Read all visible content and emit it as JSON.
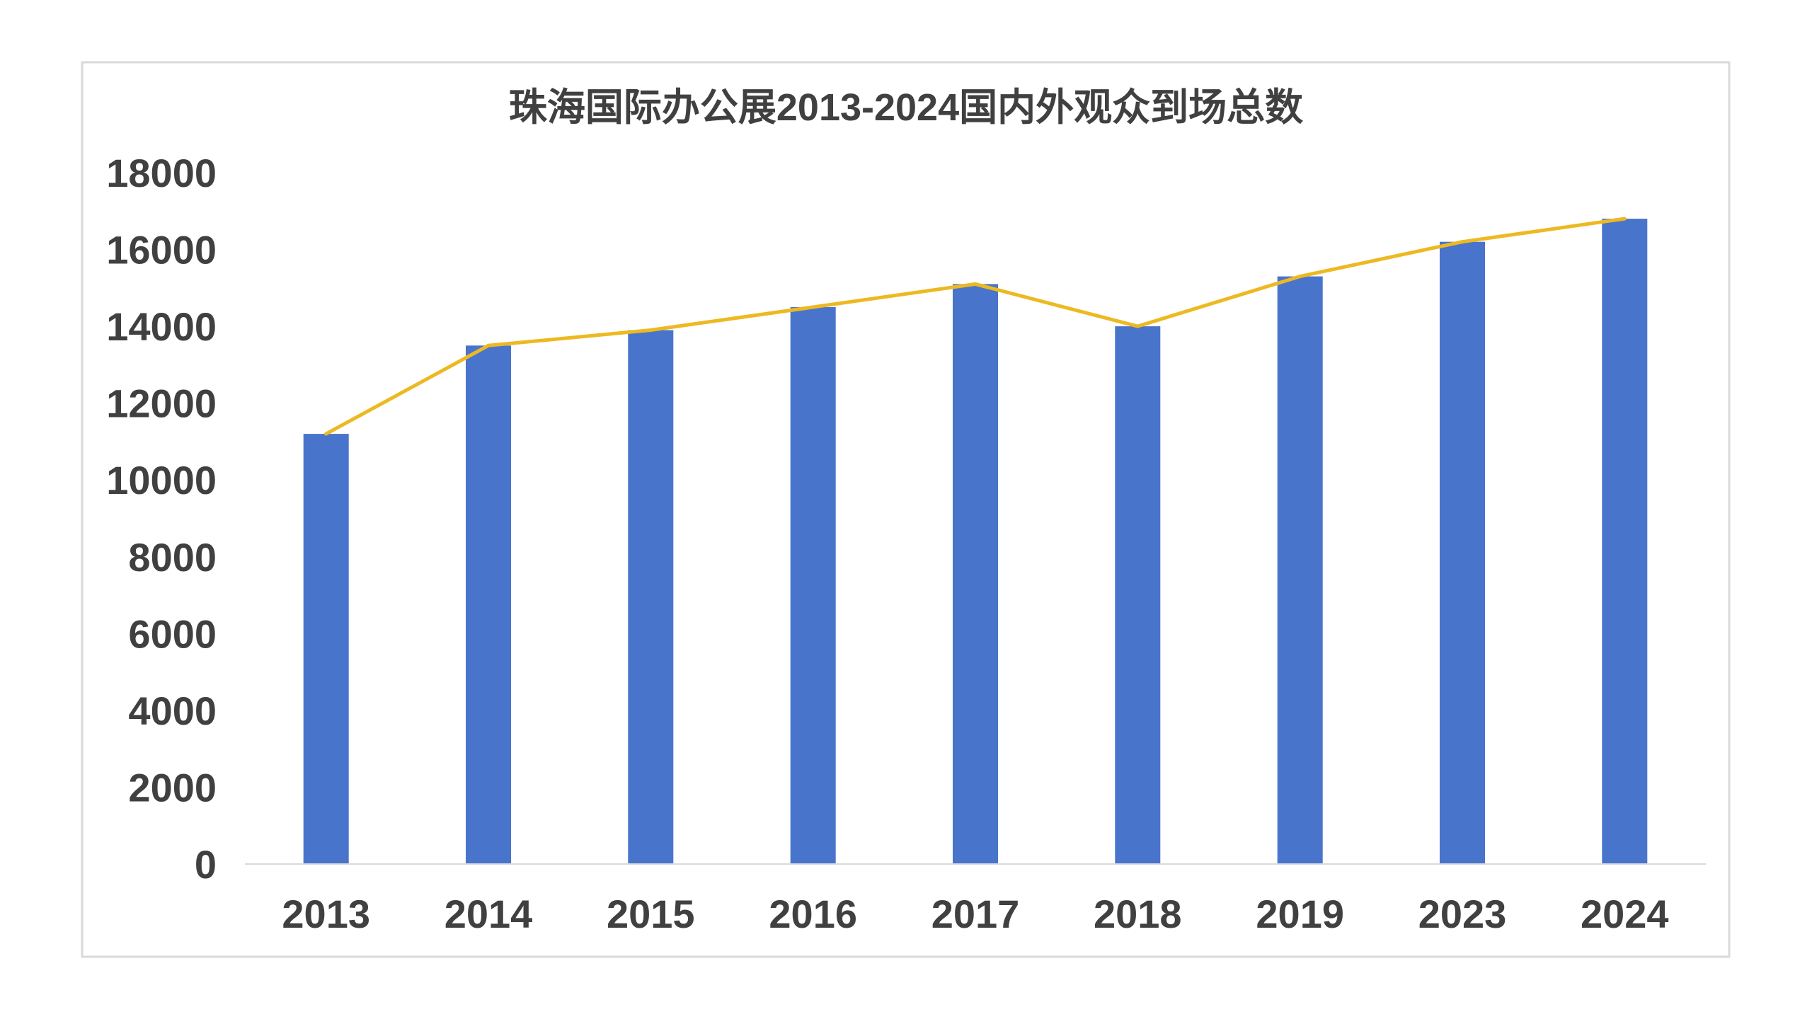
{
  "chart_data": {
    "type": "bar",
    "title": "珠海国际办公展2013-2024国内外观众到场总数",
    "xlabel": "",
    "ylabel": "",
    "categories": [
      "2013",
      "2014",
      "2015",
      "2016",
      "2017",
      "2018",
      "2019",
      "2023",
      "2024"
    ],
    "series": [
      {
        "type": "bar",
        "values": [
          11200,
          13500,
          13900,
          14500,
          15100,
          14000,
          15300,
          16200,
          16800
        ],
        "color": "#4874CB"
      },
      {
        "type": "line",
        "values": [
          11200,
          13500,
          13900,
          14500,
          15100,
          14000,
          15300,
          16200,
          16800
        ],
        "color": "#EDB922"
      }
    ],
    "ylim": [
      0,
      18000
    ],
    "yticks": [
      0,
      2000,
      4000,
      6000,
      8000,
      10000,
      12000,
      14000,
      16000,
      18000
    ],
    "grid": false,
    "legend": "none",
    "frame_color": "#D9D9D9",
    "axis_color": "#D9D9D9",
    "text_color": "#404040"
  }
}
